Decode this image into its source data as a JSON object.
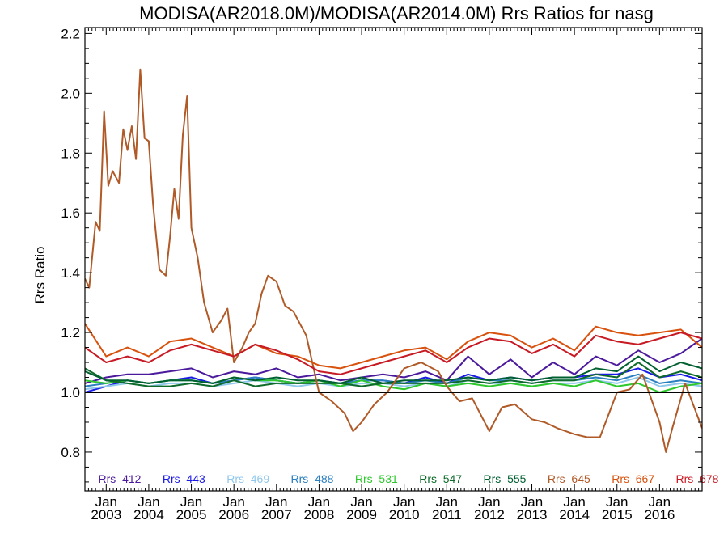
{
  "chart_data": {
    "type": "line",
    "title": "MODISA(AR2018.0M)/MODISA(AR2014.0M)  Rrs Ratios for nasg",
    "xlabel": "",
    "ylabel": "Rrs Ratio",
    "xlim": [
      2002.5,
      2017.0
    ],
    "ylim": [
      0.67,
      2.22
    ],
    "y_ticks": [
      0.8,
      1.0,
      1.2,
      1.4,
      1.6,
      1.8,
      2.0,
      2.2
    ],
    "y_tick_labels": [
      "0.8",
      "1.0",
      "1.2",
      "1.4",
      "1.6",
      "1.8",
      "2.0",
      "2.2"
    ],
    "x_ticks": [
      2003,
      2004,
      2005,
      2006,
      2007,
      2008,
      2009,
      2010,
      2011,
      2012,
      2013,
      2014,
      2015,
      2016
    ],
    "x_tick_labels": [
      "2003",
      "2004",
      "2005",
      "2006",
      "2007",
      "2008",
      "2009",
      "2010",
      "2011",
      "2012",
      "2013",
      "2014",
      "2015",
      "2016"
    ],
    "x_tick_prefix": "Jan",
    "reference_line": 1.0,
    "legend_placement": "bottom inside plot",
    "series": [
      {
        "name": "Rrs_412",
        "color": "#4b1a9c",
        "x": [
          2002.5,
          2003.0,
          2003.5,
          2004.0,
          2004.5,
          2005.0,
          2005.5,
          2006.0,
          2006.5,
          2007.0,
          2007.5,
          2008.0,
          2008.5,
          2009.0,
          2009.5,
          2010.0,
          2010.5,
          2011.0,
          2011.5,
          2012.0,
          2012.5,
          2013.0,
          2013.5,
          2014.0,
          2014.5,
          2015.0,
          2015.5,
          2016.0,
          2016.5,
          2017.0
        ],
        "y": [
          1.03,
          1.05,
          1.06,
          1.06,
          1.07,
          1.08,
          1.05,
          1.07,
          1.06,
          1.08,
          1.05,
          1.06,
          1.04,
          1.05,
          1.06,
          1.05,
          1.07,
          1.04,
          1.12,
          1.06,
          1.11,
          1.05,
          1.1,
          1.06,
          1.12,
          1.09,
          1.14,
          1.1,
          1.13,
          1.18
        ]
      },
      {
        "name": "Rrs_443",
        "color": "#1a1ae6",
        "x": [
          2002.5,
          2003.0,
          2003.5,
          2004.0,
          2004.5,
          2005.0,
          2005.5,
          2006.0,
          2006.5,
          2007.0,
          2007.5,
          2008.0,
          2008.5,
          2009.0,
          2009.5,
          2010.0,
          2010.5,
          2011.0,
          2011.5,
          2012.0,
          2012.5,
          2013.0,
          2013.5,
          2014.0,
          2014.5,
          2015.0,
          2015.5,
          2016.0,
          2016.5,
          2017.0
        ],
        "y": [
          1.0,
          1.02,
          1.04,
          1.03,
          1.04,
          1.05,
          1.03,
          1.04,
          1.05,
          1.04,
          1.03,
          1.04,
          1.03,
          1.04,
          1.04,
          1.03,
          1.05,
          1.03,
          1.06,
          1.04,
          1.05,
          1.04,
          1.05,
          1.05,
          1.06,
          1.06,
          1.08,
          1.05,
          1.06,
          1.04
        ]
      },
      {
        "name": "Rrs_469",
        "color": "#90c8ec",
        "x": [
          2002.5,
          2003.0,
          2003.5,
          2004.0,
          2004.5,
          2005.0,
          2005.5,
          2006.0,
          2006.5,
          2007.0,
          2007.5,
          2008.0,
          2008.5,
          2009.0,
          2009.5,
          2010.0,
          2010.5,
          2011.0,
          2011.5,
          2012.0,
          2012.5,
          2013.0,
          2013.5,
          2014.0,
          2014.5,
          2015.0,
          2015.5,
          2016.0,
          2016.5,
          2017.0
        ],
        "y": [
          1.01,
          1.02,
          1.03,
          1.02,
          1.03,
          1.03,
          1.02,
          1.03,
          1.04,
          1.03,
          1.02,
          1.03,
          1.02,
          1.03,
          1.03,
          1.02,
          1.03,
          1.02,
          1.04,
          1.03,
          1.03,
          1.02,
          1.03,
          1.03,
          1.04,
          1.03,
          1.05,
          1.02,
          1.03,
          1.02
        ]
      },
      {
        "name": "Rrs_488",
        "color": "#2a7fc0",
        "x": [
          2002.5,
          2003.0,
          2003.5,
          2004.0,
          2004.5,
          2005.0,
          2005.5,
          2006.0,
          2006.5,
          2007.0,
          2007.5,
          2008.0,
          2008.5,
          2009.0,
          2009.5,
          2010.0,
          2010.5,
          2011.0,
          2011.5,
          2012.0,
          2012.5,
          2013.0,
          2013.5,
          2014.0,
          2014.5,
          2015.0,
          2015.5,
          2016.0,
          2016.5,
          2017.0
        ],
        "y": [
          1.02,
          1.03,
          1.04,
          1.03,
          1.04,
          1.04,
          1.03,
          1.04,
          1.05,
          1.04,
          1.03,
          1.04,
          1.03,
          1.04,
          1.04,
          1.03,
          1.04,
          1.03,
          1.05,
          1.04,
          1.04,
          1.03,
          1.04,
          1.04,
          1.05,
          1.04,
          1.06,
          1.03,
          1.04,
          1.03
        ]
      },
      {
        "name": "Rrs_531",
        "color": "#2ec82e",
        "x": [
          2002.5,
          2003.0,
          2003.5,
          2004.0,
          2004.5,
          2005.0,
          2005.5,
          2006.0,
          2006.5,
          2007.0,
          2007.5,
          2008.0,
          2008.5,
          2009.0,
          2009.5,
          2010.0,
          2010.5,
          2011.0,
          2011.5,
          2012.0,
          2012.5,
          2013.0,
          2013.5,
          2014.0,
          2014.5,
          2015.0,
          2015.5,
          2016.0,
          2016.5,
          2017.0
        ],
        "y": [
          1.04,
          1.03,
          1.04,
          1.03,
          1.04,
          1.04,
          1.03,
          1.05,
          1.04,
          1.04,
          1.03,
          1.04,
          1.02,
          1.04,
          1.02,
          1.01,
          1.03,
          1.02,
          1.03,
          1.02,
          1.03,
          1.02,
          1.03,
          1.02,
          1.04,
          1.02,
          1.03,
          1.0,
          1.02,
          1.03
        ]
      },
      {
        "name": "Rrs_547",
        "color": "#0e6b2a",
        "x": [
          2002.5,
          2003.0,
          2003.5,
          2004.0,
          2004.5,
          2005.0,
          2005.5,
          2006.0,
          2006.5,
          2007.0,
          2007.5,
          2008.0,
          2008.5,
          2009.0,
          2009.5,
          2010.0,
          2010.5,
          2011.0,
          2011.5,
          2012.0,
          2012.5,
          2013.0,
          2013.5,
          2014.0,
          2014.5,
          2015.0,
          2015.5,
          2016.0,
          2016.5,
          2017.0
        ],
        "y": [
          1.08,
          1.04,
          1.03,
          1.02,
          1.02,
          1.03,
          1.02,
          1.04,
          1.02,
          1.03,
          1.03,
          1.03,
          1.03,
          1.02,
          1.03,
          1.03,
          1.03,
          1.03,
          1.04,
          1.03,
          1.04,
          1.03,
          1.04,
          1.04,
          1.06,
          1.05,
          1.1,
          1.05,
          1.07,
          1.05
        ]
      },
      {
        "name": "Rrs_555",
        "color": "#006030",
        "x": [
          2002.5,
          2003.0,
          2003.5,
          2004.0,
          2004.5,
          2005.0,
          2005.5,
          2006.0,
          2006.5,
          2007.0,
          2007.5,
          2008.0,
          2008.5,
          2009.0,
          2009.5,
          2010.0,
          2010.5,
          2011.0,
          2011.5,
          2012.0,
          2012.5,
          2013.0,
          2013.5,
          2014.0,
          2014.5,
          2015.0,
          2015.5,
          2016.0,
          2016.5,
          2017.0
        ],
        "y": [
          1.07,
          1.04,
          1.04,
          1.03,
          1.04,
          1.04,
          1.03,
          1.05,
          1.04,
          1.05,
          1.04,
          1.04,
          1.03,
          1.05,
          1.03,
          1.04,
          1.04,
          1.04,
          1.05,
          1.04,
          1.05,
          1.04,
          1.05,
          1.05,
          1.08,
          1.07,
          1.12,
          1.07,
          1.1,
          1.08
        ]
      },
      {
        "name": "Rrs_645",
        "color": "#b05a28",
        "x": [
          2002.5,
          2002.6,
          2002.75,
          2002.85,
          2002.95,
          2003.05,
          2003.15,
          2003.3,
          2003.4,
          2003.5,
          2003.6,
          2003.7,
          2003.8,
          2003.9,
          2004.0,
          2004.1,
          2004.25,
          2004.4,
          2004.5,
          2004.6,
          2004.7,
          2004.8,
          2004.9,
          2005.0,
          2005.15,
          2005.3,
          2005.5,
          2005.7,
          2005.85,
          2006.0,
          2006.2,
          2006.35,
          2006.5,
          2006.65,
          2006.8,
          2007.0,
          2007.2,
          2007.4,
          2007.7,
          2008.0,
          2008.3,
          2008.6,
          2008.8,
          2009.0,
          2009.3,
          2009.6,
          2010.0,
          2010.4,
          2010.8,
          2011.0,
          2011.3,
          2011.6,
          2012.0,
          2012.3,
          2012.6,
          2013.0,
          2013.3,
          2013.6,
          2014.0,
          2014.3,
          2014.6,
          2015.0,
          2015.3,
          2015.6,
          2016.0,
          2016.15,
          2016.3,
          2016.6,
          2017.0
        ],
        "y": [
          1.38,
          1.35,
          1.57,
          1.54,
          1.94,
          1.69,
          1.74,
          1.7,
          1.88,
          1.81,
          1.89,
          1.78,
          2.08,
          1.85,
          1.84,
          1.63,
          1.41,
          1.39,
          1.52,
          1.68,
          1.58,
          1.86,
          1.99,
          1.55,
          1.45,
          1.3,
          1.2,
          1.24,
          1.28,
          1.1,
          1.15,
          1.2,
          1.23,
          1.33,
          1.39,
          1.37,
          1.29,
          1.27,
          1.19,
          1.0,
          0.97,
          0.93,
          0.87,
          0.9,
          0.96,
          1.0,
          1.08,
          1.1,
          1.07,
          1.02,
          0.97,
          0.98,
          0.87,
          0.95,
          0.96,
          0.91,
          0.9,
          0.88,
          0.86,
          0.85,
          0.85,
          1.0,
          1.01,
          1.06,
          0.9,
          0.8,
          0.88,
          1.03,
          0.88
        ]
      },
      {
        "name": "Rrs_667",
        "color": "#d8520e",
        "x": [
          2002.5,
          2003.0,
          2003.5,
          2004.0,
          2004.5,
          2005.0,
          2005.5,
          2006.0,
          2006.5,
          2007.0,
          2007.5,
          2008.0,
          2008.5,
          2009.0,
          2009.5,
          2010.0,
          2010.5,
          2011.0,
          2011.5,
          2012.0,
          2012.5,
          2013.0,
          2013.5,
          2014.0,
          2014.5,
          2015.0,
          2015.5,
          2016.0,
          2016.5,
          2017.0
        ],
        "y": [
          1.23,
          1.12,
          1.15,
          1.12,
          1.17,
          1.18,
          1.15,
          1.12,
          1.16,
          1.13,
          1.12,
          1.09,
          1.08,
          1.1,
          1.12,
          1.14,
          1.15,
          1.11,
          1.17,
          1.2,
          1.19,
          1.15,
          1.18,
          1.14,
          1.22,
          1.2,
          1.19,
          1.2,
          1.21,
          1.15
        ]
      },
      {
        "name": "Rrs_678",
        "color": "#c81a24",
        "x": [
          2002.5,
          2003.0,
          2003.5,
          2004.0,
          2004.5,
          2005.0,
          2005.5,
          2006.0,
          2006.5,
          2007.0,
          2007.5,
          2008.0,
          2008.5,
          2009.0,
          2009.5,
          2010.0,
          2010.5,
          2011.0,
          2011.5,
          2012.0,
          2012.5,
          2013.0,
          2013.5,
          2014.0,
          2014.5,
          2015.0,
          2015.5,
          2016.0,
          2016.5,
          2017.0
        ],
        "y": [
          1.15,
          1.1,
          1.12,
          1.1,
          1.14,
          1.16,
          1.14,
          1.12,
          1.16,
          1.14,
          1.11,
          1.07,
          1.06,
          1.08,
          1.1,
          1.12,
          1.14,
          1.1,
          1.15,
          1.18,
          1.17,
          1.13,
          1.16,
          1.12,
          1.19,
          1.17,
          1.16,
          1.18,
          1.2,
          1.18
        ]
      }
    ]
  }
}
